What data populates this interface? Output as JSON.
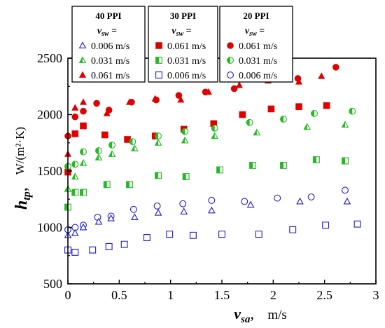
{
  "chart_data": {
    "type": "scatter",
    "xlabel_main": "v",
    "xlabel_sub": "sa",
    "xlabel_unit": "m/s",
    "ylabel_main": "h",
    "ylabel_sub": "tp",
    "ylabel_unit": "W/(m²·K)",
    "xlim": [
      0,
      3
    ],
    "ylim": [
      500,
      2500
    ],
    "xticks": [
      0,
      0.5,
      1,
      1.5,
      2,
      2.5,
      3
    ],
    "xtick_labels": [
      "0",
      "0.5",
      "1",
      "1.5",
      "2",
      "2.5",
      "3"
    ],
    "yticks": [
      500,
      1000,
      1500,
      2000,
      2500
    ],
    "ytick_labels": [
      "500",
      "1000",
      "1500",
      "2000",
      "2500"
    ],
    "legend": {
      "placement": "top",
      "vsw_label_main": "v",
      "vsw_label_sub": "sw",
      "vsw_label_suffix": " =",
      "groups": [
        {
          "title": "40 PPI",
          "entries": [
            {
              "label": "0.006 m/s",
              "marker": "triangle-open",
              "color": "#1a1adb"
            },
            {
              "label": "0.031 m/s",
              "marker": "triangle-half",
              "color": "#22bb22"
            },
            {
              "label": "0.061 m/s",
              "marker": "triangle-filled",
              "color": "#e00000"
            }
          ]
        },
        {
          "title": "30 PPI",
          "entries": [
            {
              "label": "0.061 m/s",
              "marker": "square-filled",
              "color": "#e00000"
            },
            {
              "label": "0.031 m/s",
              "marker": "square-half",
              "color": "#22bb22"
            },
            {
              "label": "0.006 m/s",
              "marker": "square-open",
              "color": "#1a1adb"
            }
          ]
        },
        {
          "title": "20 PPI",
          "entries": [
            {
              "label": "0.061 m/s",
              "marker": "circle-filled",
              "color": "#e00000"
            },
            {
              "label": "0.031 m/s",
              "marker": "circle-half",
              "color": "#22bb22"
            },
            {
              "label": "0.006 m/s",
              "marker": "circle-open",
              "color": "#1a1adb"
            }
          ]
        }
      ]
    },
    "series": [
      {
        "marker": "triangle-filled",
        "color": "#e00000",
        "x": [
          0,
          0.07,
          0.15,
          0.38,
          0.6,
          0.85,
          1.1,
          1.37,
          1.67,
          1.95,
          2.25,
          2.47
        ],
        "y": [
          1650,
          2060,
          2110,
          2010,
          2110,
          2140,
          2130,
          2200,
          2260,
          2300,
          2290,
          2340
        ]
      },
      {
        "marker": "circle-filled",
        "color": "#e00000",
        "x": [
          0.0,
          0.07,
          0.15,
          0.28,
          0.4,
          0.62,
          0.86,
          1.08,
          1.34,
          1.62,
          1.96,
          2.24,
          2.61
        ],
        "y": [
          1810,
          1980,
          2030,
          2100,
          2040,
          2110,
          2130,
          2170,
          2200,
          2230,
          2320,
          2320,
          2420
        ]
      },
      {
        "marker": "square-filled",
        "color": "#e00000",
        "x": [
          0.0,
          0.07,
          0.15,
          0.36,
          0.58,
          0.85,
          1.13,
          1.42,
          1.7,
          1.98,
          2.25,
          2.52
        ],
        "y": [
          1490,
          1830,
          1900,
          1820,
          1780,
          1810,
          1870,
          1920,
          2000,
          2050,
          2070,
          2080
        ]
      },
      {
        "marker": "circle-half",
        "color": "#22bb22",
        "x": [
          0.0,
          0.07,
          0.15,
          0.3,
          0.43,
          0.63,
          0.88,
          1.14,
          1.43,
          1.77,
          2.1,
          2.4,
          2.77
        ],
        "y": [
          1540,
          1560,
          1670,
          1680,
          1730,
          1760,
          1810,
          1850,
          1880,
          1930,
          1960,
          2010,
          2030
        ]
      },
      {
        "marker": "triangle-half",
        "color": "#22bb22",
        "x": [
          0.0,
          0.07,
          0.15,
          0.3,
          0.43,
          0.65,
          0.88,
          1.14,
          1.43,
          1.84,
          2.33,
          2.7
        ],
        "y": [
          1340,
          1450,
          1570,
          1620,
          1650,
          1700,
          1750,
          1770,
          1810,
          1840,
          1890,
          1910
        ]
      },
      {
        "marker": "square-half",
        "color": "#22bb22",
        "x": [
          0.0,
          0.07,
          0.15,
          0.38,
          0.6,
          0.88,
          1.15,
          1.48,
          1.8,
          2.1,
          2.42,
          2.7
        ],
        "y": [
          1180,
          1310,
          1310,
          1380,
          1380,
          1460,
          1450,
          1510,
          1550,
          1550,
          1600,
          1590
        ]
      },
      {
        "marker": "circle-open",
        "color": "#1a1adb",
        "x": [
          0.0,
          0.07,
          0.15,
          0.29,
          0.42,
          0.64,
          0.87,
          1.12,
          1.4,
          1.72,
          2.04,
          2.37,
          2.7
        ],
        "y": [
          980,
          1000,
          1020,
          1090,
          1100,
          1160,
          1190,
          1210,
          1240,
          1230,
          1260,
          1270,
          1330
        ]
      },
      {
        "marker": "triangle-open",
        "color": "#1a1adb",
        "x": [
          0.0,
          0.07,
          0.15,
          0.3,
          0.42,
          0.65,
          0.88,
          1.13,
          1.4,
          1.78,
          2.26,
          2.72
        ],
        "y": [
          930,
          950,
          1000,
          1050,
          1080,
          1090,
          1130,
          1140,
          1150,
          1200,
          1230,
          1230
        ]
      },
      {
        "marker": "square-open",
        "color": "#1a1adb",
        "x": [
          0.0,
          0.07,
          0.24,
          0.4,
          0.55,
          0.77,
          0.99,
          1.22,
          1.5,
          1.86,
          2.19,
          2.51,
          2.82
        ],
        "y": [
          800,
          780,
          800,
          830,
          850,
          910,
          940,
          930,
          940,
          940,
          980,
          1020,
          1030
        ]
      }
    ]
  }
}
